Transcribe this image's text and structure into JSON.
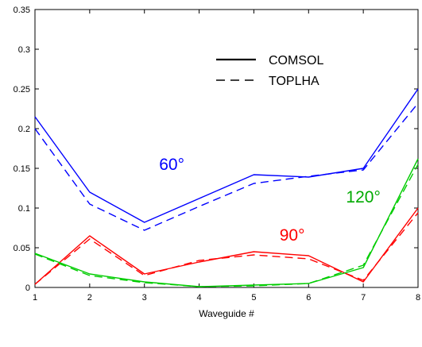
{
  "chart_data": {
    "type": "line",
    "title": "",
    "xlabel": "Waveguide #",
    "ylabel": "",
    "x": [
      1,
      2,
      3,
      4,
      5,
      6,
      7,
      8
    ],
    "xlim": [
      1,
      8
    ],
    "ylim": [
      0,
      0.35
    ],
    "xticks": [
      "1",
      "2",
      "3",
      "4",
      "5",
      "6",
      "7",
      "8"
    ],
    "yticks": [
      "0",
      "0.05",
      "0.1",
      "0.15",
      "0.2",
      "0.25",
      "0.3",
      "0.35"
    ],
    "grid": false,
    "legend": {
      "placement": "top-right",
      "entries": [
        {
          "label": "COMSOL",
          "style": "solid"
        },
        {
          "label": "TOPLHA",
          "style": "dashed"
        }
      ]
    },
    "series": [
      {
        "group": "60°",
        "style": "solid",
        "color": "#0000ff",
        "values": [
          0.215,
          0.12,
          0.082,
          0.112,
          0.142,
          0.139,
          0.15,
          0.25
        ]
      },
      {
        "group": "60°",
        "style": "dashed",
        "color": "#0000ff",
        "values": [
          0.2,
          0.105,
          0.072,
          0.102,
          0.131,
          0.14,
          0.148,
          0.232
        ]
      },
      {
        "group": "90°",
        "style": "solid",
        "color": "#ff0000",
        "values": [
          0.004,
          0.065,
          0.017,
          0.032,
          0.045,
          0.04,
          0.007,
          0.1
        ]
      },
      {
        "group": "90°",
        "style": "dashed",
        "color": "#ff0000",
        "values": [
          0.004,
          0.061,
          0.015,
          0.034,
          0.041,
          0.036,
          0.009,
          0.094
        ]
      },
      {
        "group": "120°",
        "style": "solid",
        "color": "#00cc00",
        "values": [
          0.043,
          0.017,
          0.007,
          0.001,
          0.003,
          0.005,
          0.025,
          0.162
        ]
      },
      {
        "group": "120°",
        "style": "dashed",
        "color": "#00cc00",
        "values": [
          0.042,
          0.015,
          0.006,
          0.001,
          0.002,
          0.005,
          0.028,
          0.155
        ]
      }
    ],
    "annotations": [
      {
        "text": "60°",
        "color": "#0000ff",
        "at_x": 3.5,
        "at_y": 0.148
      },
      {
        "text": "90°",
        "color": "#ff0000",
        "at_x": 5.7,
        "at_y": 0.059
      },
      {
        "text": "120°",
        "color": "#00aa00",
        "at_x": 7.0,
        "at_y": 0.107
      }
    ]
  }
}
